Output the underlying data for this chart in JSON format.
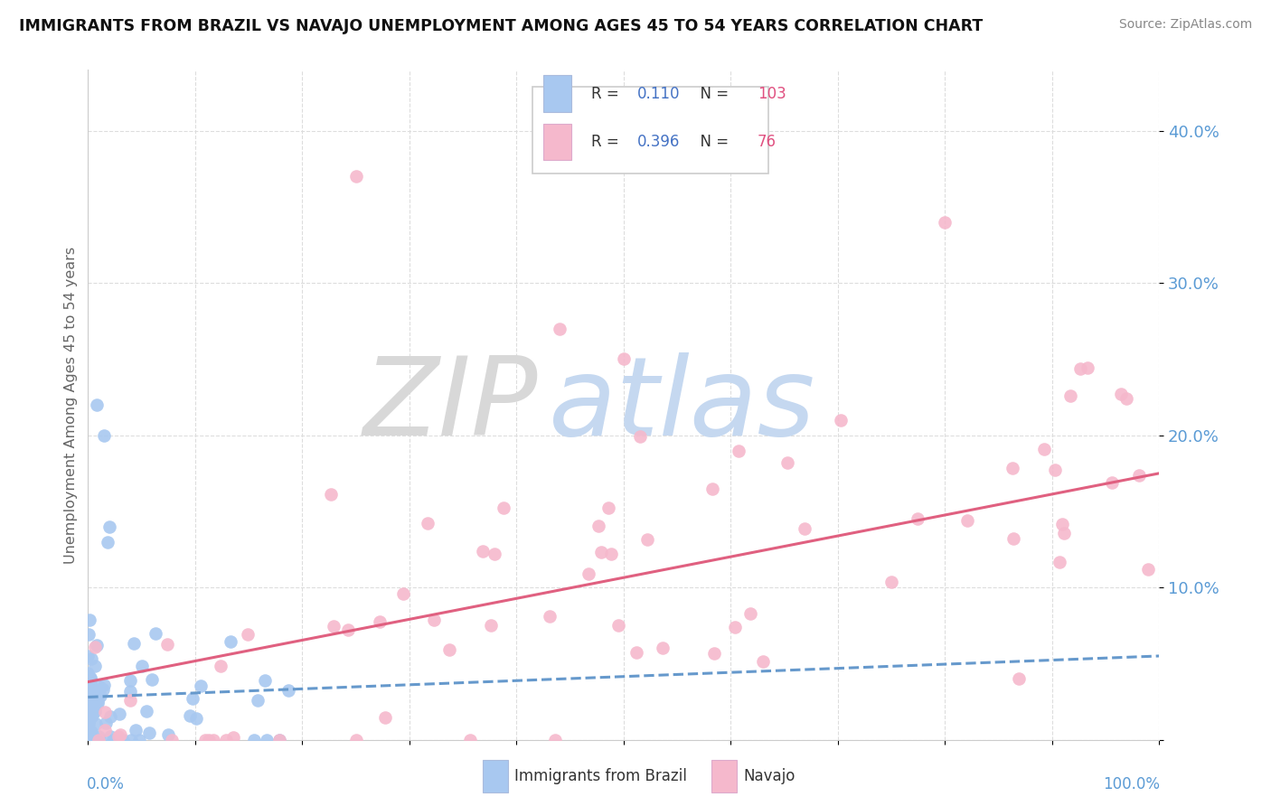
{
  "title": "IMMIGRANTS FROM BRAZIL VS NAVAJO UNEMPLOYMENT AMONG AGES 45 TO 54 YEARS CORRELATION CHART",
  "source": "Source: ZipAtlas.com",
  "ylabel": "Unemployment Among Ages 45 to 54 years",
  "ytick_labels": [
    "",
    "10.0%",
    "20.0%",
    "30.0%",
    "40.0%"
  ],
  "ytick_values": [
    0.0,
    0.1,
    0.2,
    0.3,
    0.4
  ],
  "xlim": [
    0,
    1.0
  ],
  "ylim": [
    0,
    0.44
  ],
  "watermark_zip": "ZIP",
  "watermark_atlas": "atlas",
  "brazil_color": "#a8c8f0",
  "navajo_color": "#f5b8cc",
  "brazil_line_color": "#6699cc",
  "navajo_line_color": "#e06080",
  "ytick_color": "#5b9bd5",
  "background_color": "#ffffff",
  "r_label_color": "#4472c4",
  "n_label_color": "#e05080",
  "brazil_R": 0.11,
  "brazil_N": 103,
  "navajo_R": 0.396,
  "navajo_N": 76,
  "grid_color": "#dddddd",
  "grid_style": "--"
}
